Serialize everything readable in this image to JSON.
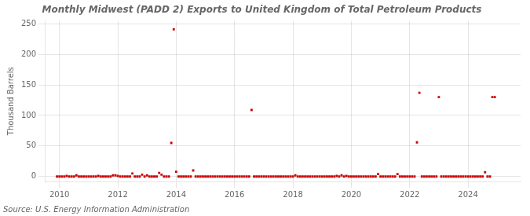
{
  "chart_data": {
    "type": "scatter",
    "title": "Monthly Midwest (PADD 2) Exports to United Kingdom of Total Petroleum Products",
    "ylabel": "Thousand Barrels",
    "annotations": [
      "Source: U.S. Energy Information Administration"
    ],
    "color": "#cc0000",
    "marker": "square",
    "grid": true,
    "xlim": [
      2009.5,
      2025.8
    ],
    "xticks": [
      2010,
      2012,
      2014,
      2016,
      2018,
      2020,
      2022,
      2024
    ],
    "ylim": [
      -8,
      255
    ],
    "yticks": [
      0,
      50,
      100,
      150,
      200,
      250
    ],
    "x": [
      2009.917,
      2010.0,
      2010.083,
      2010.167,
      2010.25,
      2010.333,
      2010.417,
      2010.5,
      2010.583,
      2010.667,
      2010.75,
      2010.833,
      2010.917,
      2011.0,
      2011.083,
      2011.167,
      2011.25,
      2011.333,
      2011.417,
      2011.5,
      2011.583,
      2011.667,
      2011.75,
      2011.833,
      2011.917,
      2012.0,
      2012.083,
      2012.167,
      2012.25,
      2012.333,
      2012.417,
      2012.5,
      2012.583,
      2012.667,
      2012.75,
      2012.833,
      2012.917,
      2013.0,
      2013.083,
      2013.167,
      2013.25,
      2013.333,
      2013.417,
      2013.5,
      2013.583,
      2013.667,
      2013.75,
      2013.833,
      2013.917,
      2014.0,
      2014.083,
      2014.167,
      2014.25,
      2014.333,
      2014.417,
      2014.5,
      2014.583,
      2014.667,
      2014.75,
      2014.833,
      2014.917,
      2015.0,
      2015.083,
      2015.167,
      2015.25,
      2015.333,
      2015.417,
      2015.5,
      2015.583,
      2015.667,
      2015.75,
      2015.833,
      2015.917,
      2016.0,
      2016.083,
      2016.167,
      2016.25,
      2016.333,
      2016.417,
      2016.5,
      2016.583,
      2016.667,
      2016.75,
      2016.833,
      2016.917,
      2017.0,
      2017.083,
      2017.167,
      2017.25,
      2017.333,
      2017.417,
      2017.5,
      2017.583,
      2017.667,
      2017.75,
      2017.833,
      2017.917,
      2018.0,
      2018.083,
      2018.167,
      2018.25,
      2018.333,
      2018.417,
      2018.5,
      2018.583,
      2018.667,
      2018.75,
      2018.833,
      2018.917,
      2019.0,
      2019.083,
      2019.167,
      2019.25,
      2019.333,
      2019.417,
      2019.5,
      2019.583,
      2019.667,
      2019.75,
      2019.833,
      2019.917,
      2020.0,
      2020.083,
      2020.167,
      2020.25,
      2020.333,
      2020.417,
      2020.5,
      2020.583,
      2020.667,
      2020.75,
      2020.833,
      2020.917,
      2021.0,
      2021.083,
      2021.167,
      2021.25,
      2021.333,
      2021.417,
      2021.5,
      2021.583,
      2021.667,
      2021.75,
      2021.833,
      2021.917,
      2022.0,
      2022.083,
      2022.167,
      2022.25,
      2022.333,
      2022.417,
      2022.5,
      2022.583,
      2022.667,
      2022.75,
      2022.833,
      2022.917,
      2023.0,
      2023.083,
      2023.167,
      2023.25,
      2023.333,
      2023.417,
      2023.5,
      2023.583,
      2023.667,
      2023.75,
      2023.833,
      2023.917,
      2024.0,
      2024.083,
      2024.167,
      2024.25,
      2024.333,
      2024.417,
      2024.5,
      2024.583,
      2024.667,
      2024.75,
      2024.833,
      2024.917
    ],
    "values": [
      0,
      0,
      0,
      0,
      1,
      0,
      0,
      0,
      2,
      0,
      0,
      0,
      0,
      0,
      0,
      0,
      0,
      1,
      0,
      0,
      0,
      0,
      0,
      2,
      2,
      1,
      0,
      0,
      0,
      0,
      0,
      5,
      0,
      0,
      0,
      3,
      0,
      2,
      0,
      0,
      0,
      0,
      6,
      3,
      0,
      0,
      0,
      55,
      241,
      8,
      0,
      0,
      0,
      0,
      0,
      0,
      10,
      0,
      0,
      0,
      0,
      0,
      0,
      0,
      0,
      0,
      0,
      0,
      0,
      0,
      0,
      0,
      0,
      0,
      0,
      0,
      0,
      0,
      0,
      0,
      109,
      0,
      0,
      0,
      0,
      0,
      0,
      0,
      0,
      0,
      0,
      0,
      0,
      0,
      0,
      0,
      0,
      0,
      2,
      0,
      0,
      0,
      0,
      0,
      0,
      0,
      0,
      0,
      0,
      0,
      0,
      0,
      0,
      0,
      0,
      1,
      0,
      2,
      0,
      1,
      0,
      0,
      0,
      0,
      0,
      0,
      0,
      0,
      0,
      0,
      0,
      0,
      4,
      0,
      0,
      0,
      0,
      0,
      0,
      0,
      4,
      0,
      0,
      0,
      0,
      0,
      0,
      0,
      56,
      137,
      0,
      0,
      0,
      0,
      0,
      0,
      0,
      130,
      0,
      0,
      0,
      0,
      0,
      0,
      0,
      0,
      0,
      0,
      0,
      0,
      0,
      0,
      0,
      0,
      0,
      0,
      7,
      0,
      0,
      130,
      130
    ]
  }
}
